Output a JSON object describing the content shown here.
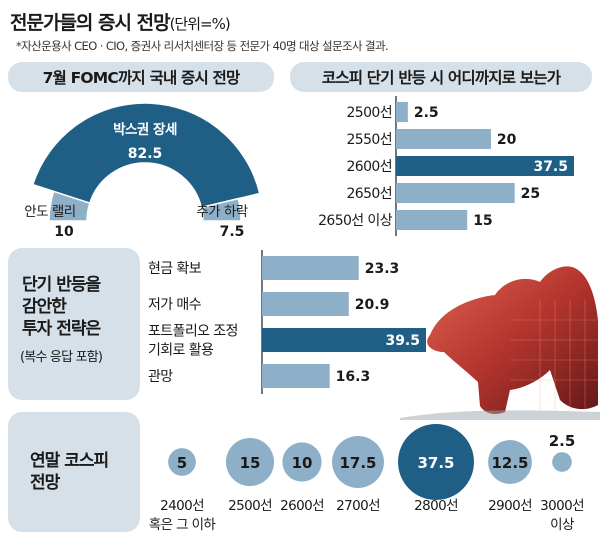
{
  "title": "전문가들의 증시 전망",
  "unit": "(단위=%)",
  "note": "*자산운용사 CEO · CIO, 증권사 리서치센터장 등 전문가 40명 대상 설문조사 결과.",
  "colors": {
    "dark": "#1f5f86",
    "light": "#8eafc8",
    "panel": "#d6e0e8"
  },
  "chart_data": [
    {
      "type": "pie",
      "title": "7월 FOMC까지 국내 증시 전망",
      "labels": [
        "안도 랠리",
        "박스권 장세",
        "추가 하락"
      ],
      "values": [
        10,
        82.5,
        7.5
      ],
      "value_labels": [
        "10",
        "82.5",
        "7.5"
      ],
      "highlight": "박스권 장세"
    },
    {
      "type": "bar",
      "orientation": "horizontal",
      "title": "코스피 단기 반등 시 어디까지로 보는가",
      "categories": [
        "2500선",
        "2550선",
        "2600선",
        "2650선",
        "2650선 이상"
      ],
      "values": [
        2.5,
        20,
        37.5,
        25,
        15
      ],
      "value_labels": [
        "2.5",
        "20",
        "37.5",
        "25",
        "15"
      ],
      "highlight": "2600선"
    },
    {
      "type": "bar",
      "orientation": "horizontal",
      "title_lines": [
        "단기 반등을",
        "감안한",
        "투자 전략은"
      ],
      "subtitle": "(복수 응답 포함)",
      "categories": [
        [
          "현금 확보"
        ],
        [
          "저가 매수"
        ],
        [
          "포트폴리오 조정",
          "기회로 활용"
        ],
        [
          "관망"
        ]
      ],
      "values": [
        23.3,
        20.9,
        39.5,
        16.3
      ],
      "value_labels": [
        "23.3",
        "20.9",
        "39.5",
        "16.3"
      ],
      "highlight": 2
    },
    {
      "type": "scatter",
      "style": "bubble",
      "title_lines": [
        "연말 코스피",
        "전망"
      ],
      "categories": [
        [
          "2400선",
          "혹은 그 이하"
        ],
        [
          "2500선"
        ],
        [
          "2600선"
        ],
        [
          "2700선"
        ],
        [
          "2800선"
        ],
        [
          "2900선"
        ],
        [
          "3000선",
          "이상"
        ]
      ],
      "values": [
        5,
        15,
        10,
        17.5,
        37.5,
        12.5,
        2.5
      ],
      "value_labels": [
        "5",
        "15",
        "10",
        "17.5",
        "37.5",
        "12.5",
        "2.5"
      ],
      "highlight": "2800선"
    }
  ]
}
